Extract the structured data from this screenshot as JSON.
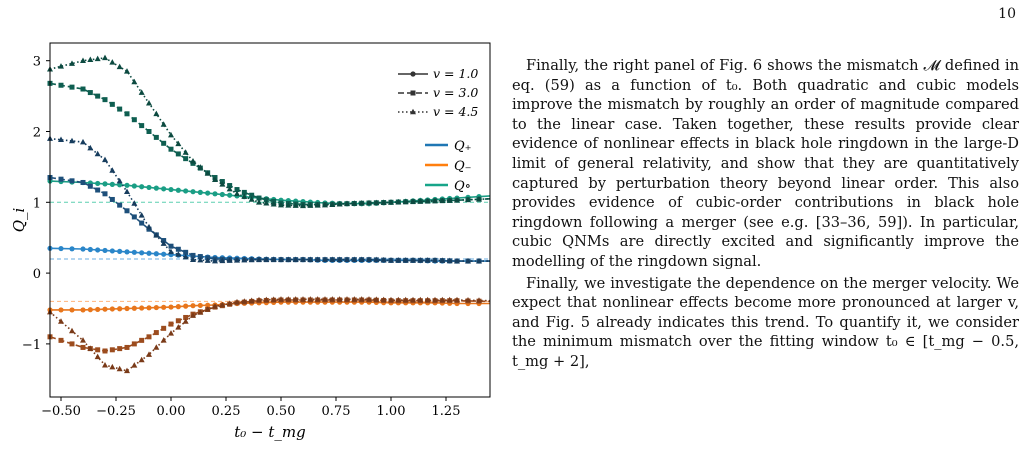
{
  "page_number": "10",
  "paragraphs": [
    "Finally, the right panel of Fig. 6 shows the mismatch 𝓜 defined in eq. (59) as a function of t₀. Both quadratic and cubic models improve the mismatch by roughly an order of magnitude compared to the linear case. Taken together, these results provide clear evidence of nonlinear effects in black hole ringdown in the large-D limit of general relativity, and show that they are quantitatively captured by perturbation theory beyond linear order. This also provides evidence of cubic-order contributions in black hole ringdown following a merger (see e.g. [33–36, 59]). In particular, cubic QNMs are directly excited and significantly improve the modelling of the ringdown signal.",
    "Finally, we investigate the dependence on the merger velocity. We expect that nonlinear effects become more pronounced at larger v, and Fig. 5 already indicates this trend. To quantify it, we consider the minimum mismatch over the fitting window t₀ ∈ [t_mg − 0.5, t_mg + 2],"
  ],
  "chart_data": {
    "type": "line",
    "xlabel": "t₀ − t_mg",
    "ylabel": "Q_i",
    "xlim": [
      -0.55,
      1.45
    ],
    "ylim": [
      -1.75,
      3.25
    ],
    "xticks": [
      "−0.50",
      "−0.25",
      "0.00",
      "0.25",
      "0.50",
      "0.75",
      "1.00",
      "1.25"
    ],
    "xtick_values": [
      -0.5,
      -0.25,
      0.0,
      0.25,
      0.5,
      0.75,
      1.0,
      1.25
    ],
    "yticks": [
      "−1",
      "0",
      "1",
      "2",
      "3"
    ],
    "ytick_values": [
      -1,
      0,
      1,
      2,
      3
    ],
    "grid": false,
    "legend_styles": [
      {
        "label": "v = 1.0",
        "style": "solid-circle"
      },
      {
        "label": "v = 3.0",
        "style": "dashed-square"
      },
      {
        "label": "v = 4.5",
        "style": "dotted-triangle"
      }
    ],
    "legend_quantities": [
      {
        "label": "Q₊",
        "color": "#1f77b4"
      },
      {
        "label": "Q₋",
        "color": "#ff7f0e"
      },
      {
        "label": "Q∘",
        "color": "#17a589"
      }
    ],
    "reference_lines": [
      {
        "y": 1.0,
        "color": "#5ccfb0"
      },
      {
        "y": 0.2,
        "color": "#6aaee0"
      },
      {
        "y": -0.4,
        "color": "#ffb37a"
      }
    ],
    "x": [
      -0.55,
      -0.4,
      -0.3,
      -0.2,
      -0.1,
      0.0,
      0.1,
      0.2,
      0.3,
      0.4,
      0.5,
      0.6,
      0.7,
      0.8,
      0.9,
      1.0,
      1.1,
      1.2,
      1.3,
      1.45
    ],
    "series": [
      {
        "name": "Q∘ v=1.0",
        "color": "#1a9e85",
        "style": "solid-circle",
        "values": [
          1.3,
          1.28,
          1.26,
          1.24,
          1.21,
          1.18,
          1.15,
          1.12,
          1.09,
          1.06,
          1.03,
          1.01,
          0.99,
          0.98,
          0.98,
          1.0,
          1.02,
          1.04,
          1.06,
          1.09
        ]
      },
      {
        "name": "Q∘ v=3.0",
        "color": "#0e5e50",
        "style": "dashed-square",
        "values": [
          2.68,
          2.6,
          2.45,
          2.25,
          2.0,
          1.75,
          1.55,
          1.35,
          1.18,
          1.06,
          0.99,
          0.97,
          0.97,
          0.98,
          0.99,
          1.0,
          1.01,
          1.02,
          1.03,
          1.05
        ]
      },
      {
        "name": "Q∘ v=4.5",
        "color": "#0c4a40",
        "style": "dotted-triangle",
        "values": [
          2.88,
          3.0,
          3.04,
          2.85,
          2.4,
          1.95,
          1.58,
          1.32,
          1.12,
          1.0,
          0.96,
          0.95,
          0.96,
          0.98,
          0.99,
          1.0,
          1.01,
          1.02,
          1.03,
          1.05
        ]
      },
      {
        "name": "Q₊ v=1.0",
        "color": "#2a86c9",
        "style": "solid-circle",
        "values": [
          0.35,
          0.34,
          0.32,
          0.3,
          0.28,
          0.26,
          0.24,
          0.22,
          0.21,
          0.2,
          0.19,
          0.19,
          0.18,
          0.18,
          0.18,
          0.18,
          0.18,
          0.17,
          0.17,
          0.17
        ]
      },
      {
        "name": "Q₊ v=3.0",
        "color": "#1d4f7a",
        "style": "dashed-square",
        "values": [
          1.35,
          1.28,
          1.12,
          0.88,
          0.62,
          0.38,
          0.25,
          0.2,
          0.19,
          0.19,
          0.19,
          0.19,
          0.19,
          0.19,
          0.19,
          0.18,
          0.18,
          0.18,
          0.17,
          0.17
        ]
      },
      {
        "name": "Q₊ v=4.5",
        "color": "#173d5e",
        "style": "dotted-triangle",
        "values": [
          1.9,
          1.85,
          1.6,
          1.15,
          0.65,
          0.3,
          0.19,
          0.17,
          0.18,
          0.19,
          0.19,
          0.19,
          0.19,
          0.19,
          0.19,
          0.18,
          0.18,
          0.18,
          0.17,
          0.17
        ]
      },
      {
        "name": "Q₋ v=1.0",
        "color": "#e8761c",
        "style": "solid-circle",
        "values": [
          -0.52,
          -0.52,
          -0.51,
          -0.5,
          -0.49,
          -0.48,
          -0.46,
          -0.45,
          -0.43,
          -0.42,
          -0.41,
          -0.41,
          -0.41,
          -0.41,
          -0.41,
          -0.42,
          -0.42,
          -0.42,
          -0.43,
          -0.43
        ]
      },
      {
        "name": "Q₋ v=3.0",
        "color": "#9c4c1e",
        "style": "dashed-square",
        "values": [
          -0.9,
          -1.05,
          -1.1,
          -1.05,
          -0.9,
          -0.72,
          -0.58,
          -0.48,
          -0.42,
          -0.39,
          -0.38,
          -0.38,
          -0.38,
          -0.38,
          -0.38,
          -0.39,
          -0.39,
          -0.39,
          -0.39,
          -0.4
        ]
      },
      {
        "name": "Q₋ v=4.5",
        "color": "#7a3a18",
        "style": "dotted-triangle",
        "values": [
          -0.55,
          -0.95,
          -1.3,
          -1.38,
          -1.15,
          -0.85,
          -0.6,
          -0.47,
          -0.41,
          -0.38,
          -0.37,
          -0.37,
          -0.37,
          -0.37,
          -0.37,
          -0.38,
          -0.38,
          -0.38,
          -0.38,
          -0.39
        ]
      }
    ]
  }
}
